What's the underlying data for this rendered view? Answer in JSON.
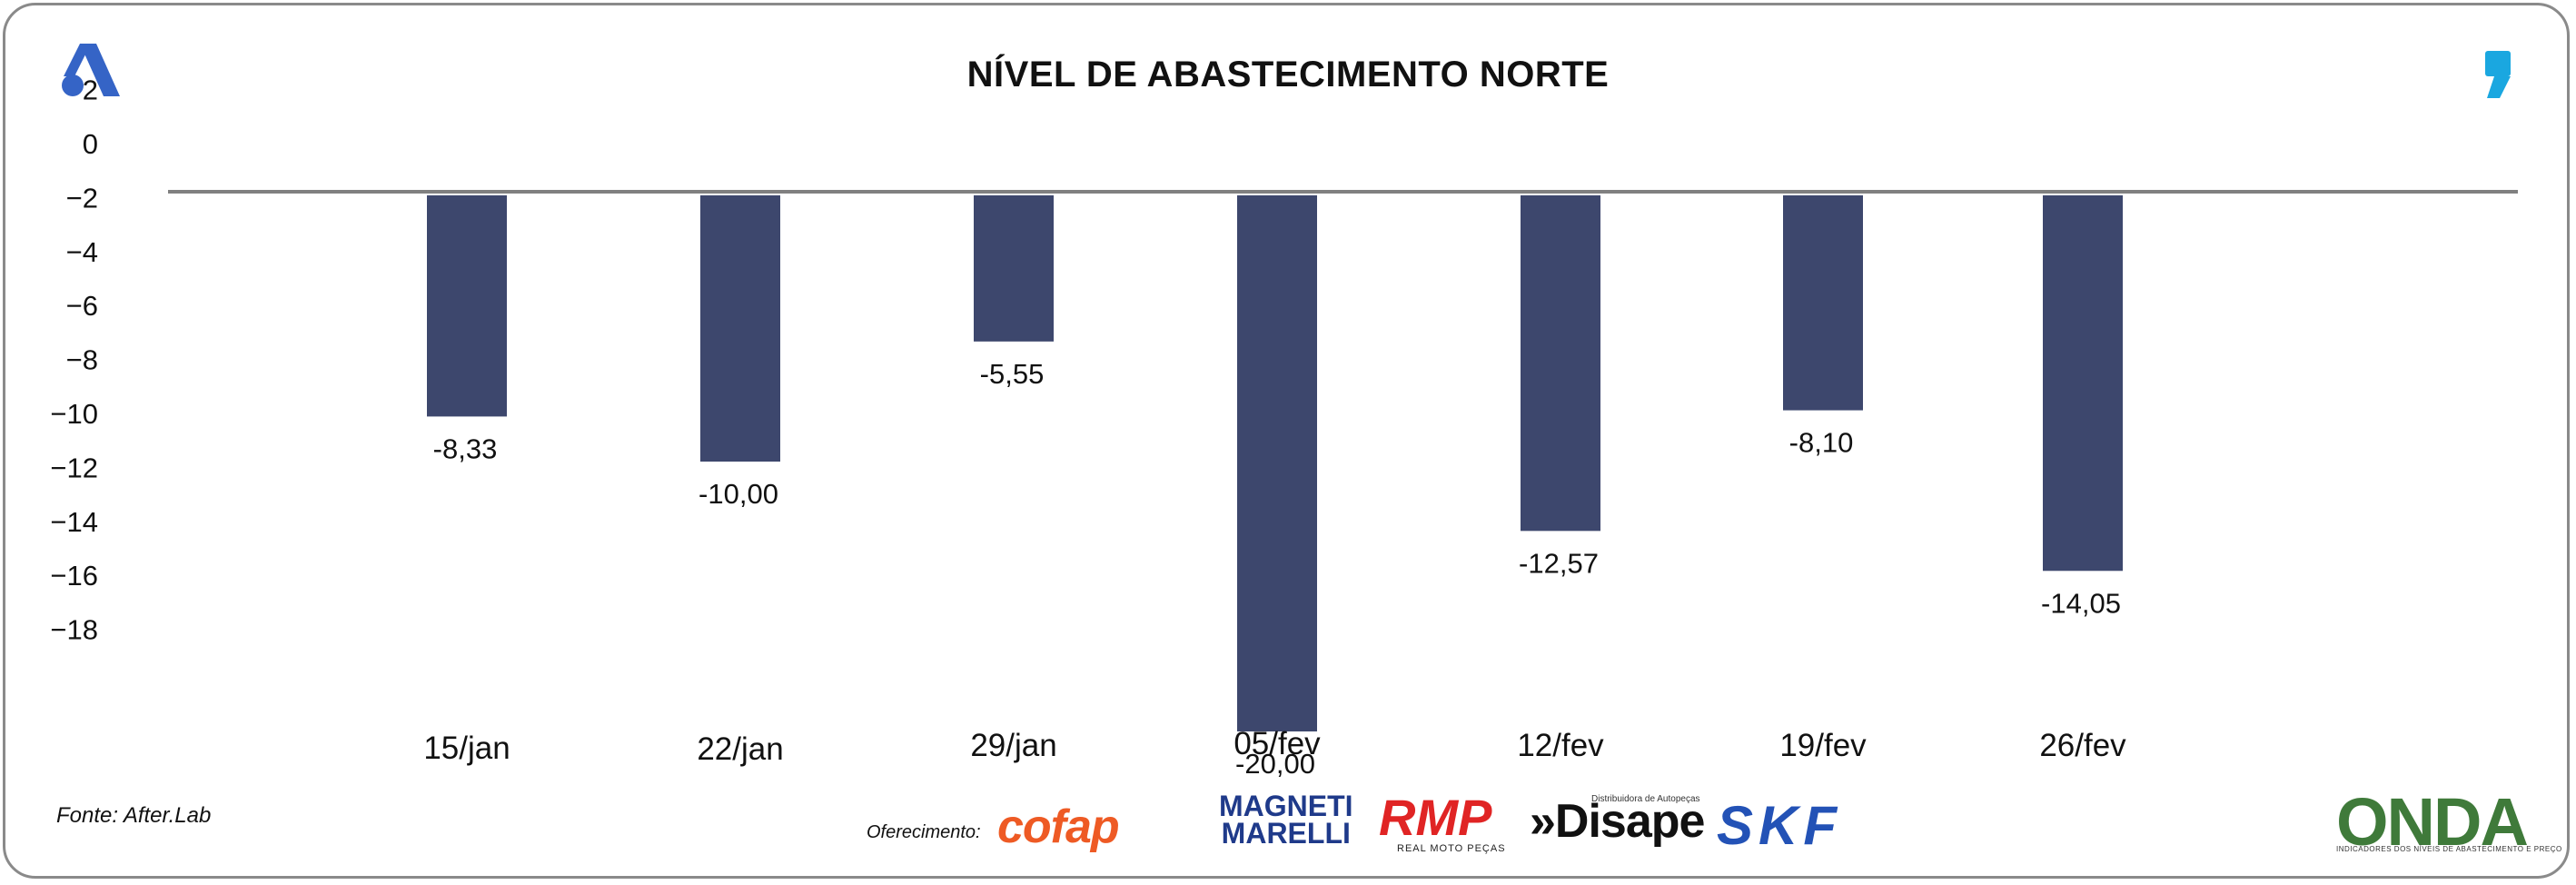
{
  "header": {
    "title": "NÍVEL DE ABASTECIMENTO NORTE"
  },
  "footer": {
    "source": "Fonte: After.Lab",
    "sponsor_label": "Oferecimento:",
    "sponsors": {
      "cofap": "cofap",
      "magneti_line1": "MAGNETI",
      "magneti_line2": "MARELLI",
      "rmp": "RMP",
      "rmp_sub": "REAL MOTO PEÇAS",
      "disape": "»Disape",
      "disape_sub": "Distribuidora de Autopeças",
      "skf": "SKF",
      "onda": "ONDA",
      "onda_sub": "INDICADORES DOS NÍVEIS DE ABASTECIMENTO E PREÇO"
    }
  },
  "colors": {
    "bar": "#3d476d",
    "axis_line": "#808080",
    "logo_blue": "#3564c6",
    "quote_cyan": "#1aa7e0"
  },
  "icons": {
    "top_left": "abstract-a-logo-icon",
    "top_right": "quote-mark-icon"
  },
  "chart_data": {
    "type": "bar",
    "title": "NÍVEL DE ABASTECIMENTO NORTE",
    "categories": [
      "15/jan",
      "22/jan",
      "29/jan",
      "05/fev",
      "12/fev",
      "19/fev",
      "26/fev"
    ],
    "values": [
      -8.33,
      -10.0,
      -5.55,
      -20.0,
      -12.57,
      -8.1,
      -14.05
    ],
    "data_labels": [
      "-8,33",
      "-10,00",
      "-5,55",
      "-20,00",
      "-12,57",
      "-8,10",
      "-14,05"
    ],
    "yticks": [
      2,
      0,
      -2,
      -4,
      -6,
      -8,
      -10,
      -12,
      -14,
      -16,
      -18
    ],
    "ylim": [
      -18,
      2
    ],
    "grid": false,
    "legend": "none"
  }
}
